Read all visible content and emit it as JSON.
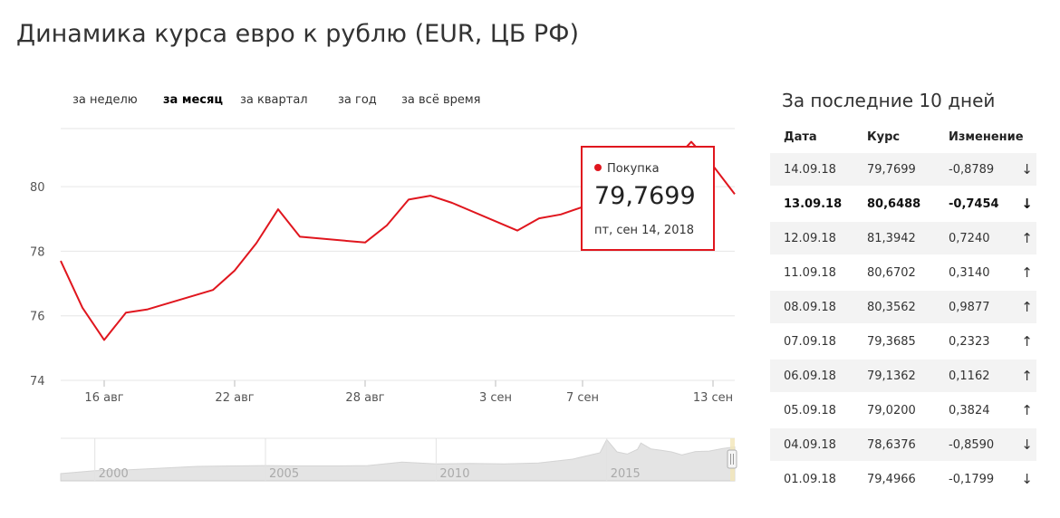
{
  "title": "Динамика курса евро к рублю (EUR, ЦБ РФ)",
  "period_tabs": [
    {
      "label": "за неделю",
      "active": false
    },
    {
      "label": "за месяц",
      "active": true
    },
    {
      "label": "за квартал",
      "active": false
    },
    {
      "label": "за год",
      "active": false
    },
    {
      "label": "за всё время",
      "active": false
    }
  ],
  "tooltip": {
    "series": "Покупка",
    "value": "79,7699",
    "date": "пт, сен 14, 2018"
  },
  "colors": {
    "line": "#e0161e",
    "grid": "#e6e6e6",
    "down": "#e0161e",
    "up": "#2fb82f",
    "navigator_fill": "#e4e4e4"
  },
  "chart_data": {
    "type": "line",
    "ylim": [
      74,
      81.8
    ],
    "yticks": [
      "80",
      "78",
      "76",
      "74"
    ],
    "ytick_values": [
      80,
      78,
      76,
      74
    ],
    "xticks": [
      "16 авг",
      "22 авг",
      "28 авг",
      "3 сен",
      "7 сен",
      "13 сен"
    ],
    "xtick_dates": [
      "2018-08-16",
      "2018-08-22",
      "2018-08-28",
      "2018-09-03",
      "2018-09-07",
      "2018-09-13"
    ],
    "x_range": [
      "2018-08-14",
      "2018-09-14"
    ],
    "series": [
      {
        "x": [
          "2018-08-14",
          "2018-08-15",
          "2018-08-16",
          "2018-08-17",
          "2018-08-18",
          "2018-08-21",
          "2018-08-22",
          "2018-08-23",
          "2018-08-24",
          "2018-08-25",
          "2018-08-28",
          "2018-08-29",
          "2018-08-30",
          "2018-08-31",
          "2018-09-01",
          "2018-09-04",
          "2018-09-05",
          "2018-09-06",
          "2018-09-07",
          "2018-09-08",
          "2018-09-11",
          "2018-09-12",
          "2018-09-13",
          "2018-09-14"
        ],
        "values": [
          77.7,
          76.25,
          75.25,
          76.1,
          76.2,
          76.8,
          77.4,
          78.25,
          79.3,
          78.45,
          78.27,
          78.8,
          79.6,
          79.72,
          79.5,
          78.64,
          79.02,
          79.14,
          79.37,
          80.36,
          80.67,
          81.39,
          80.65,
          79.77
        ]
      }
    ],
    "navigator": {
      "xticks": [
        "2000",
        "2005",
        "2010",
        "2015"
      ],
      "xtick_years": [
        2000,
        2005,
        2010,
        2015
      ],
      "x_range": [
        1999.0,
        2018.75
      ],
      "ylim": [
        0,
        100
      ],
      "points": [
        [
          1999.0,
          17
        ],
        [
          2000,
          24
        ],
        [
          2001,
          26
        ],
        [
          2002,
          30
        ],
        [
          2003,
          34
        ],
        [
          2004,
          35
        ],
        [
          2005,
          36
        ],
        [
          2006,
          35
        ],
        [
          2007,
          35
        ],
        [
          2008,
          36
        ],
        [
          2009,
          44
        ],
        [
          2010,
          40
        ],
        [
          2011,
          41
        ],
        [
          2012,
          40
        ],
        [
          2013,
          42
        ],
        [
          2014,
          51
        ],
        [
          2014.8,
          66
        ],
        [
          2015.0,
          97
        ],
        [
          2015.3,
          68
        ],
        [
          2015.6,
          63
        ],
        [
          2015.9,
          74
        ],
        [
          2016.0,
          89
        ],
        [
          2016.3,
          75
        ],
        [
          2016.6,
          72
        ],
        [
          2016.9,
          68
        ],
        [
          2017.2,
          61
        ],
        [
          2017.6,
          69
        ],
        [
          2018.0,
          70
        ],
        [
          2018.4,
          76
        ],
        [
          2018.75,
          80
        ]
      ]
    }
  },
  "table": {
    "title": "За последние 10 дней",
    "headers": [
      "Дата",
      "Курс",
      "Изменение"
    ],
    "rows": [
      {
        "date": "14.09.18",
        "rate": "79,7699",
        "change": "-0,8789",
        "arrow": "↓",
        "dir": "down",
        "bold": false
      },
      {
        "date": "13.09.18",
        "rate": "80,6488",
        "change": "-0,7454",
        "arrow": "↓",
        "dir": "down",
        "bold": true
      },
      {
        "date": "12.09.18",
        "rate": "81,3942",
        "change": "0,7240",
        "arrow": "↑",
        "dir": "up",
        "bold": false
      },
      {
        "date": "11.09.18",
        "rate": "80,6702",
        "change": "0,3140",
        "arrow": "↑",
        "dir": "up",
        "bold": false
      },
      {
        "date": "08.09.18",
        "rate": "80,3562",
        "change": "0,9877",
        "arrow": "↑",
        "dir": "up",
        "bold": false
      },
      {
        "date": "07.09.18",
        "rate": "79,3685",
        "change": "0,2323",
        "arrow": "↑",
        "dir": "up",
        "bold": false
      },
      {
        "date": "06.09.18",
        "rate": "79,1362",
        "change": "0,1162",
        "arrow": "↑",
        "dir": "up",
        "bold": false
      },
      {
        "date": "05.09.18",
        "rate": "79,0200",
        "change": "0,3824",
        "arrow": "↑",
        "dir": "up",
        "bold": false
      },
      {
        "date": "04.09.18",
        "rate": "78,6376",
        "change": "-0,8590",
        "arrow": "↓",
        "dir": "down",
        "bold": false
      },
      {
        "date": "01.09.18",
        "rate": "79,4966",
        "change": "-0,1799",
        "arrow": "↓",
        "dir": "down",
        "bold": false
      }
    ]
  }
}
